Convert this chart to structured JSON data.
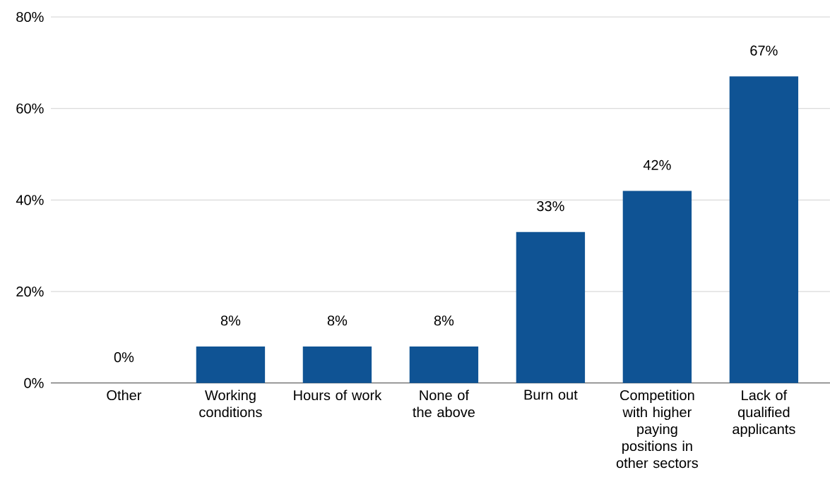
{
  "chart_data": {
    "type": "bar",
    "categories": [
      "Other",
      "Working conditions",
      "Hours of work",
      "None of the above",
      "Burn out",
      "Competition with higher paying positions in other sectors",
      "Lack of qualified applicants"
    ],
    "values": [
      0,
      8,
      8,
      8,
      33,
      42,
      67
    ],
    "value_labels": [
      "0%",
      "8%",
      "8%",
      "8%",
      "33%",
      "42%",
      "67%"
    ],
    "color": "#0f5394",
    "ylim": [
      0,
      80
    ],
    "yticks": [
      {
        "value": 0,
        "label": "0%"
      },
      {
        "value": 20,
        "label": "20%"
      },
      {
        "value": 40,
        "label": "40%"
      },
      {
        "value": 60,
        "label": "60%"
      },
      {
        "value": 80,
        "label": "80%"
      }
    ],
    "grid": "y"
  }
}
